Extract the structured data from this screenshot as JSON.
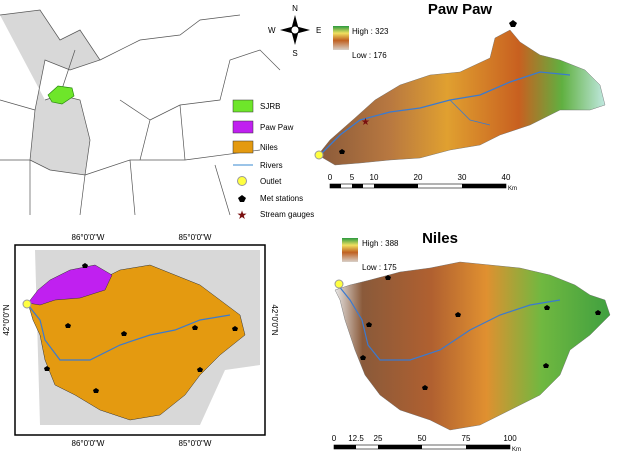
{
  "overview_map": {
    "compass": {
      "north": "N",
      "south": "S",
      "east": "E",
      "west": "W"
    }
  },
  "legend": {
    "items": [
      {
        "label": "SJRB"
      },
      {
        "label": "Paw Paw"
      },
      {
        "label": "Niles"
      },
      {
        "label": "Rivers"
      },
      {
        "label": "Outlet"
      },
      {
        "label": "Met stations"
      },
      {
        "label": "Stream gauges"
      }
    ]
  },
  "paw_paw": {
    "title": "Paw Paw",
    "high": "High : 323",
    "low": "Low : 176",
    "scale": [
      "0",
      "5",
      "10",
      "20",
      "30",
      "40"
    ],
    "unit": "Km"
  },
  "niles": {
    "title": "Niles",
    "high": "High : 388",
    "low": "Low : 175",
    "scale": [
      "0",
      "12.5",
      "25",
      "50",
      "75",
      "100"
    ],
    "unit": "Km"
  },
  "inset": {
    "longitudes": [
      "86°0'0\"W",
      "85°0'0\"W"
    ],
    "latitudes": [
      "42°0'0\"N"
    ]
  }
}
